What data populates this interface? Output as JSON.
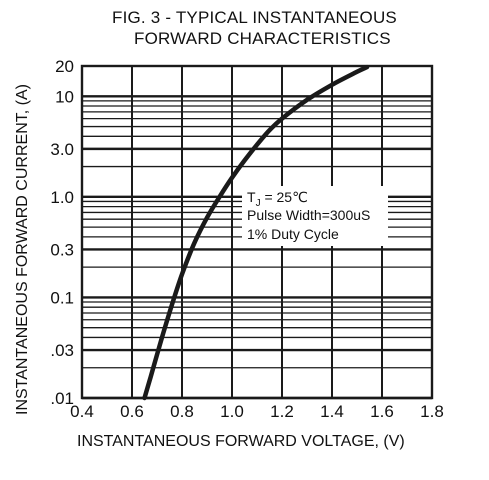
{
  "chart_data": {
    "type": "line",
    "title_lines": [
      "FIG. 3 - TYPICAL INSTANTANEOUS",
      "FORWARD CHARACTERISTICS"
    ],
    "xlabel": "INSTANTANEOUS FORWARD VOLTAGE, (V)",
    "ylabel": "INSTANTANEOUS FORWARD CURRENT, (A)",
    "x_scale": "linear",
    "y_scale": "log",
    "xlim": [
      0.4,
      1.8
    ],
    "ylim": [
      0.01,
      20
    ],
    "x_ticks": [
      {
        "value": 0.4,
        "label": "0.4"
      },
      {
        "value": 0.6,
        "label": "0.6"
      },
      {
        "value": 0.8,
        "label": "0.8"
      },
      {
        "value": 1.0,
        "label": "1.0"
      },
      {
        "value": 1.2,
        "label": "1.2"
      },
      {
        "value": 1.4,
        "label": "1.4"
      },
      {
        "value": 1.6,
        "label": "1.6"
      },
      {
        "value": 1.8,
        "label": "1.8"
      }
    ],
    "y_ticks": [
      {
        "value": 0.01,
        "label": ".01"
      },
      {
        "value": 0.03,
        "label": ".03"
      },
      {
        "value": 0.1,
        "label": "0.1"
      },
      {
        "value": 0.3,
        "label": "0.3"
      },
      {
        "value": 1.0,
        "label": "1.0"
      },
      {
        "value": 3.0,
        "label": "3.0"
      },
      {
        "value": 10,
        "label": "10"
      },
      {
        "value": 20,
        "label": "20"
      }
    ],
    "grid": true,
    "series": [
      {
        "x": [
          0.65,
          0.68,
          0.72,
          0.76,
          0.8,
          0.85,
          0.9,
          0.95,
          1.0,
          1.05,
          1.1,
          1.15,
          1.2,
          1.3,
          1.4,
          1.5,
          1.54
        ],
        "y": [
          0.01,
          0.018,
          0.04,
          0.085,
          0.17,
          0.35,
          0.62,
          1.0,
          1.55,
          2.3,
          3.3,
          4.6,
          6.0,
          9.2,
          13.0,
          17.5,
          19.5
        ]
      }
    ],
    "annotation": {
      "tj_prefix": "T",
      "tj_subscript": "J",
      "tj_value": " = 25℃",
      "line2": "Pulse Width=300uS",
      "line3": "1% Duty Cycle"
    },
    "colors": {
      "line": "#1a1a1a",
      "grid": "#1a1a1a",
      "background": "#ffffff"
    }
  }
}
